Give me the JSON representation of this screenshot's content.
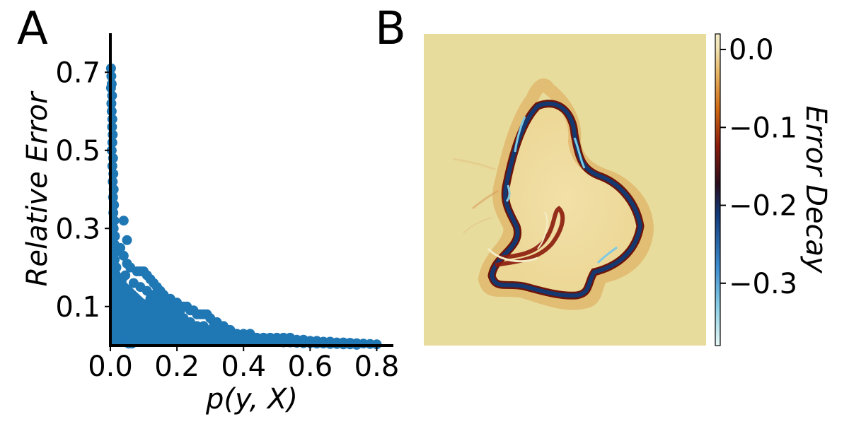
{
  "panels": {
    "a_letter": "A",
    "b_letter": "B"
  },
  "chart_data": [
    {
      "type": "scatter",
      "panel": "A",
      "xlabel": "p(y, X)",
      "ylabel": "Relative Error",
      "xlim": [
        0.0,
        0.85
      ],
      "ylim": [
        0.0,
        0.8
      ],
      "xticks": [
        0.0,
        0.2,
        0.4,
        0.6,
        0.8
      ],
      "xtick_labels": [
        "0.0",
        "0.2",
        "0.4",
        "0.6",
        "0.8"
      ],
      "yticks": [
        0.1,
        0.3,
        0.5,
        0.7
      ],
      "ytick_labels": [
        "0.1",
        "0.3",
        "0.5",
        "0.7"
      ],
      "grid": false,
      "color": "#1f77b4",
      "points": [
        [
          0.002,
          0.71
        ],
        [
          0.003,
          0.69
        ],
        [
          0.004,
          0.67
        ],
        [
          0.002,
          0.66
        ],
        [
          0.005,
          0.64
        ],
        [
          0.003,
          0.62
        ],
        [
          0.004,
          0.6
        ],
        [
          0.006,
          0.58
        ],
        [
          0.005,
          0.56
        ],
        [
          0.007,
          0.54
        ],
        [
          0.006,
          0.52
        ],
        [
          0.004,
          0.5
        ],
        [
          0.008,
          0.48
        ],
        [
          0.006,
          0.46
        ],
        [
          0.009,
          0.44
        ],
        [
          0.007,
          0.42
        ],
        [
          0.01,
          0.4
        ],
        [
          0.008,
          0.38
        ],
        [
          0.011,
          0.36
        ],
        [
          0.009,
          0.34
        ],
        [
          0.012,
          0.32
        ],
        [
          0.01,
          0.3
        ],
        [
          0.014,
          0.28
        ],
        [
          0.012,
          0.26
        ],
        [
          0.016,
          0.24
        ],
        [
          0.013,
          0.22
        ],
        [
          0.018,
          0.2
        ],
        [
          0.015,
          0.18
        ],
        [
          0.02,
          0.16
        ],
        [
          0.017,
          0.14
        ],
        [
          0.022,
          0.12
        ],
        [
          0.019,
          0.1
        ],
        [
          0.025,
          0.09
        ],
        [
          0.021,
          0.08
        ],
        [
          0.028,
          0.07
        ],
        [
          0.024,
          0.06
        ],
        [
          0.03,
          0.05
        ],
        [
          0.026,
          0.04
        ],
        [
          0.033,
          0.03
        ],
        [
          0.029,
          0.02
        ],
        [
          0.04,
          0.32
        ],
        [
          0.05,
          0.27
        ],
        [
          0.03,
          0.25
        ],
        [
          0.04,
          0.23
        ],
        [
          0.05,
          0.21
        ],
        [
          0.06,
          0.2
        ],
        [
          0.045,
          0.18
        ],
        [
          0.035,
          0.17
        ],
        [
          0.08,
          0.19
        ],
        [
          0.09,
          0.19
        ],
        [
          0.1,
          0.19
        ],
        [
          0.11,
          0.18
        ],
        [
          0.12,
          0.17
        ],
        [
          0.13,
          0.16
        ],
        [
          0.14,
          0.15
        ],
        [
          0.15,
          0.14
        ],
        [
          0.16,
          0.13
        ],
        [
          0.17,
          0.12
        ],
        [
          0.18,
          0.12
        ],
        [
          0.19,
          0.11
        ],
        [
          0.2,
          0.11
        ],
        [
          0.21,
          0.1
        ],
        [
          0.22,
          0.1
        ],
        [
          0.23,
          0.1
        ],
        [
          0.24,
          0.09
        ],
        [
          0.25,
          0.09
        ],
        [
          0.26,
          0.08
        ],
        [
          0.27,
          0.08
        ],
        [
          0.28,
          0.08
        ],
        [
          0.29,
          0.08
        ],
        [
          0.3,
          0.07
        ],
        [
          0.31,
          0.06
        ],
        [
          0.32,
          0.06
        ],
        [
          0.33,
          0.05
        ],
        [
          0.34,
          0.05
        ],
        [
          0.35,
          0.04
        ],
        [
          0.36,
          0.04
        ],
        [
          0.37,
          0.03
        ],
        [
          0.38,
          0.03
        ],
        [
          0.4,
          0.03
        ],
        [
          0.42,
          0.03
        ],
        [
          0.44,
          0.02
        ],
        [
          0.46,
          0.02
        ],
        [
          0.48,
          0.02
        ],
        [
          0.5,
          0.02
        ],
        [
          0.52,
          0.02
        ],
        [
          0.54,
          0.02
        ],
        [
          0.56,
          0.015
        ],
        [
          0.58,
          0.015
        ],
        [
          0.6,
          0.012
        ],
        [
          0.62,
          0.012
        ],
        [
          0.64,
          0.01
        ],
        [
          0.66,
          0.01
        ],
        [
          0.68,
          0.008
        ],
        [
          0.7,
          0.008
        ],
        [
          0.72,
          0.007
        ],
        [
          0.74,
          0.006
        ],
        [
          0.76,
          0.005
        ],
        [
          0.78,
          0.004
        ],
        [
          0.8,
          0.003
        ],
        [
          0.05,
          0.14
        ],
        [
          0.07,
          0.12
        ],
        [
          0.09,
          0.1
        ],
        [
          0.11,
          0.09
        ],
        [
          0.13,
          0.08
        ],
        [
          0.15,
          0.07
        ],
        [
          0.17,
          0.06
        ],
        [
          0.19,
          0.05
        ],
        [
          0.21,
          0.04
        ],
        [
          0.23,
          0.04
        ],
        [
          0.25,
          0.03
        ],
        [
          0.27,
          0.03
        ],
        [
          0.29,
          0.02
        ],
        [
          0.31,
          0.02
        ],
        [
          0.33,
          0.02
        ],
        [
          0.35,
          0.01
        ],
        [
          0.06,
          0.08
        ],
        [
          0.08,
          0.06
        ],
        [
          0.1,
          0.05
        ],
        [
          0.12,
          0.04
        ],
        [
          0.14,
          0.03
        ],
        [
          0.16,
          0.03
        ],
        [
          0.18,
          0.02
        ],
        [
          0.2,
          0.02
        ],
        [
          0.03,
          0.1
        ],
        [
          0.04,
          0.08
        ],
        [
          0.05,
          0.06
        ],
        [
          0.06,
          0.04
        ],
        [
          0.07,
          0.03
        ],
        [
          0.08,
          0.02
        ],
        [
          0.09,
          0.015
        ],
        [
          0.1,
          0.01
        ],
        [
          0.12,
          0.12
        ],
        [
          0.14,
          0.11
        ],
        [
          0.16,
          0.1
        ],
        [
          0.18,
          0.09
        ],
        [
          0.2,
          0.08
        ],
        [
          0.22,
          0.07
        ],
        [
          0.24,
          0.06
        ],
        [
          0.26,
          0.05
        ],
        [
          0.28,
          0.05
        ],
        [
          0.3,
          0.04
        ],
        [
          0.32,
          0.04
        ],
        [
          0.34,
          0.03
        ],
        [
          0.36,
          0.03
        ],
        [
          0.38,
          0.02
        ],
        [
          0.4,
          0.02
        ],
        [
          0.42,
          0.015
        ],
        [
          0.07,
          0.16
        ],
        [
          0.09,
          0.15
        ],
        [
          0.11,
          0.14
        ],
        [
          0.13,
          0.13
        ],
        [
          0.15,
          0.12
        ],
        [
          0.17,
          0.11
        ],
        [
          0.19,
          0.1
        ],
        [
          0.21,
          0.09
        ],
        [
          0.02,
          0.05
        ],
        [
          0.03,
          0.04
        ],
        [
          0.015,
          0.03
        ],
        [
          0.025,
          0.02
        ],
        [
          0.035,
          0.01
        ],
        [
          0.045,
          0.01
        ],
        [
          0.055,
          0.005
        ],
        [
          0.065,
          0.005
        ],
        [
          0.44,
          0.015
        ],
        [
          0.46,
          0.012
        ],
        [
          0.48,
          0.01
        ],
        [
          0.5,
          0.01
        ],
        [
          0.52,
          0.008
        ],
        [
          0.54,
          0.008
        ],
        [
          0.56,
          0.007
        ],
        [
          0.58,
          0.006
        ],
        [
          0.6,
          0.006
        ],
        [
          0.62,
          0.005
        ],
        [
          0.64,
          0.005
        ],
        [
          0.66,
          0.004
        ],
        [
          0.68,
          0.004
        ],
        [
          0.7,
          0.003
        ],
        [
          0.72,
          0.003
        ],
        [
          0.74,
          0.002
        ]
      ]
    },
    {
      "type": "heatmap",
      "panel": "B",
      "colorbar_label": "Error Decay",
      "clim": [
        -0.38,
        0.02
      ],
      "colorbar_ticks": [
        0.0,
        -0.1,
        -0.2,
        -0.3
      ],
      "colorbar_tick_labels": [
        "0.0",
        "−0.1",
        "−0.2",
        "−0.3"
      ],
      "background_color": "#e8dc9c",
      "colormap": [
        "#e6f7f5",
        "#8fd1e6",
        "#3e8fd0",
        "#123a7a",
        "#2a0d1c",
        "#8a1b0c",
        "#cf6a14",
        "#e8b86a",
        "#f2e6b8",
        "#f4ecc8"
      ]
    }
  ]
}
